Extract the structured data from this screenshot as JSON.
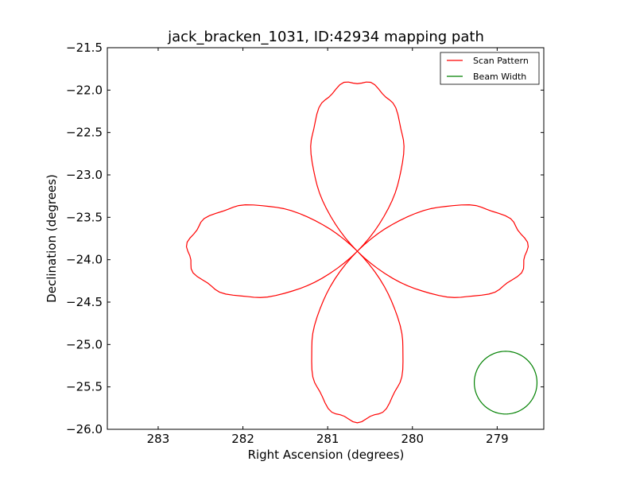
{
  "chart_data": {
    "type": "line",
    "title": "jack_bracken_1031, ID:42934 mapping path",
    "xlabel": "Right Ascension (degrees)",
    "ylabel": "Declination (degrees)",
    "xlim": [
      283.6,
      278.45
    ],
    "ylim": [
      -26.0,
      -21.5
    ],
    "x_inverted": true,
    "grid": false,
    "legend_placement": "top-right",
    "x_ticks": [
      283,
      282,
      281,
      280,
      279
    ],
    "x_tick_labels": [
      "283",
      "282",
      "281",
      "280",
      "279"
    ],
    "y_ticks": [
      -21.5,
      -22.0,
      -22.5,
      -23.0,
      -23.5,
      -24.0,
      -24.5,
      -25.0,
      -25.5,
      -26.0
    ],
    "y_tick_labels": [
      "−21.5",
      "−22.0",
      "−22.5",
      "−23.0",
      "−23.5",
      "−24.0",
      "−24.5",
      "−25.0",
      "−25.5",
      "−26.0"
    ],
    "series": [
      {
        "name": "Scan Pattern",
        "color": "#ff0000",
        "shape": "four-petal rose curve",
        "center": [
          280.65,
          -23.9
        ],
        "radius": 2.0,
        "x": [],
        "y": []
      },
      {
        "name": "Beam Width",
        "color": "#008000",
        "shape": "circle",
        "center": [
          278.9,
          -25.45
        ],
        "radius": 0.37,
        "x": [],
        "y": []
      }
    ]
  }
}
